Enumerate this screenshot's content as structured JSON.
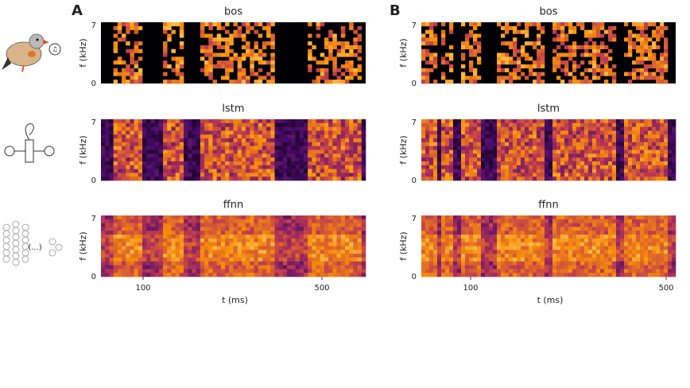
{
  "panels": [
    {
      "label": "A",
      "xlabel": "t (ms)",
      "xticks": [
        100,
        500
      ],
      "plots": [
        {
          "title": "bos",
          "ylabel": "f (kHz)",
          "yticks": [
            0,
            7
          ]
        },
        {
          "title": "lstm",
          "ylabel": "f (kHz)",
          "yticks": [
            0,
            7
          ]
        },
        {
          "title": "ffnn",
          "ylabel": "f (kHz)",
          "yticks": [
            0,
            7
          ]
        }
      ]
    },
    {
      "label": "B",
      "xlabel": "t (ms)",
      "xticks": [
        100,
        500
      ],
      "plots": [
        {
          "title": "bos",
          "ylabel": "f (kHz)",
          "yticks": [
            0,
            7
          ]
        },
        {
          "title": "lstm",
          "ylabel": "f (kHz)",
          "yticks": [
            0,
            7
          ]
        },
        {
          "title": "ffnn",
          "ylabel": "f (kHz)",
          "yticks": [
            0,
            7
          ]
        }
      ]
    }
  ],
  "icons": {
    "ffnn_text": "(...)"
  }
}
